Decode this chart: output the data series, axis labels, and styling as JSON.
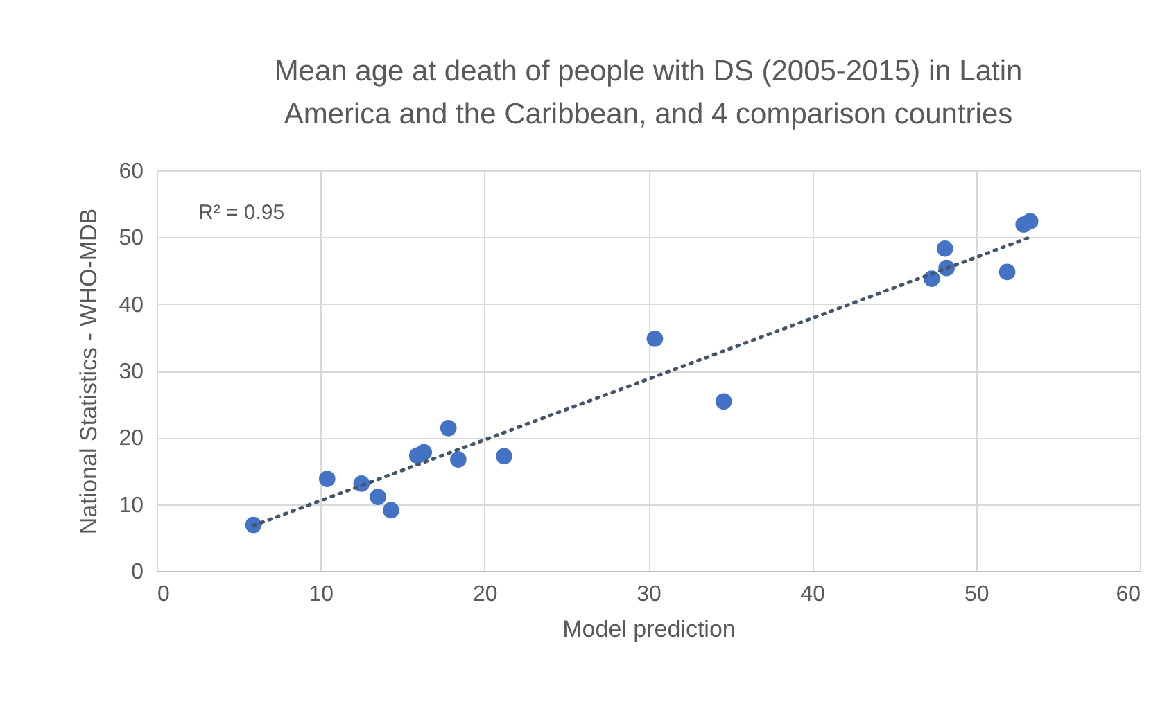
{
  "chart_data": {
    "type": "scatter",
    "title": "Mean age at death of people with DS (2005-2015) in Latin America and the Caribbean, and 4 comparison countries",
    "xlabel": "Model prediction",
    "ylabel": "National Statistics - WHO-MDB",
    "annotations": [
      "R² = 0.95"
    ],
    "xlim": [
      0,
      60
    ],
    "xticks": [
      0,
      10,
      20,
      30,
      40,
      50,
      60
    ],
    "ylim": [
      0,
      60
    ],
    "yticks": [
      0,
      10,
      20,
      30,
      40,
      50,
      60
    ],
    "grid": true,
    "marker": "circle",
    "series": [
      {
        "color": "#4472c4",
        "x": [
          5.9,
          10.4,
          12.5,
          13.5,
          14.3,
          15.9,
          16.3,
          17.8,
          18.4,
          21.2,
          30.4,
          34.6,
          47.3,
          48.2,
          48.1,
          51.9,
          52.9,
          53.3
        ],
        "values": [
          6.9,
          13.8,
          13.1,
          11.1,
          9.1,
          17.3,
          17.8,
          21.4,
          16.7,
          17.2,
          34.8,
          25.4,
          43.8,
          45.4,
          48.3,
          44.8,
          51.9,
          52.4
        ]
      },
      {
        "type": "line",
        "color": "#44546a",
        "line_style": "dotted",
        "marker": "none",
        "x": [
          5.9,
          53.3
        ],
        "values": [
          6.8,
          50.0
        ]
      }
    ]
  }
}
